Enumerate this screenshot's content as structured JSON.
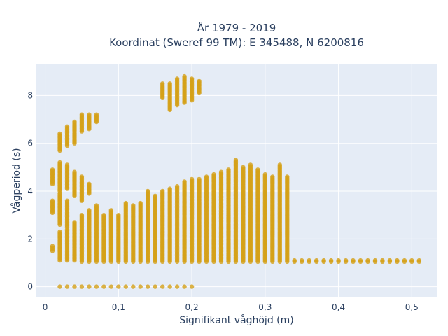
{
  "chart_data": {
    "type": "scatter",
    "title_lines": [
      "År 1979 - 2019",
      "Koordinat (Sweref 99 TM): E 345488, N 6200816"
    ],
    "xlabel": "Signifikant våghöjd (m)",
    "ylabel": "Vågperiod (s)",
    "xlim": [
      -0.012,
      0.535
    ],
    "ylim": [
      -0.45,
      9.3
    ],
    "x_ticks": [
      0,
      0.1,
      0.2,
      0.3,
      0.4,
      0.5
    ],
    "x_tick_labels": [
      "0",
      "0,1",
      "0,2",
      "0,3",
      "0,4",
      "0,5"
    ],
    "y_ticks": [
      0,
      2,
      4,
      6,
      8
    ],
    "y_tick_labels": [
      "0",
      "2",
      "4",
      "6",
      "8"
    ],
    "grid": true,
    "legend": "none",
    "colors": {
      "point": "#d4a017",
      "plot_background": "#e5ecf6",
      "grid": "#ffffff",
      "text": "#2a3f5f"
    },
    "columns": [
      {
        "x": 0.01,
        "ranges": [
          [
            1.5,
            1.7
          ],
          [
            3.1,
            3.6
          ],
          [
            4.3,
            4.9
          ]
        ]
      },
      {
        "x": 0.02,
        "ranges": [
          [
            0,
            0
          ],
          [
            1.1,
            2.3
          ],
          [
            2.6,
            3.9
          ],
          [
            4.0,
            5.2
          ],
          [
            5.7,
            6.4
          ]
        ]
      },
      {
        "x": 0.03,
        "ranges": [
          [
            0,
            0
          ],
          [
            1.1,
            2.4
          ],
          [
            2.5,
            3.6
          ],
          [
            4.1,
            5.1
          ],
          [
            5.9,
            6.7
          ]
        ]
      },
      {
        "x": 0.04,
        "ranges": [
          [
            0,
            0
          ],
          [
            1.1,
            2.7
          ],
          [
            3.8,
            4.8
          ],
          [
            6.0,
            6.9
          ]
        ]
      },
      {
        "x": 0.05,
        "ranges": [
          [
            0,
            0
          ],
          [
            1.05,
            3.0
          ],
          [
            3.6,
            4.6
          ],
          [
            6.5,
            7.2
          ]
        ]
      },
      {
        "x": 0.06,
        "ranges": [
          [
            0,
            0
          ],
          [
            1.05,
            3.2
          ],
          [
            3.9,
            4.3
          ],
          [
            6.6,
            7.2
          ]
        ]
      },
      {
        "x": 0.07,
        "ranges": [
          [
            0,
            0
          ],
          [
            1.05,
            3.4
          ],
          [
            6.9,
            7.2
          ]
        ]
      },
      {
        "x": 0.08,
        "ranges": [
          [
            0,
            0
          ],
          [
            1.05,
            3.0
          ]
        ]
      },
      {
        "x": 0.09,
        "ranges": [
          [
            0,
            0
          ],
          [
            1.05,
            3.2
          ]
        ]
      },
      {
        "x": 0.1,
        "ranges": [
          [
            0,
            0
          ],
          [
            1.05,
            3.0
          ]
        ]
      },
      {
        "x": 0.11,
        "ranges": [
          [
            0,
            0
          ],
          [
            1.05,
            3.5
          ]
        ]
      },
      {
        "x": 0.12,
        "ranges": [
          [
            0,
            0
          ],
          [
            1.05,
            3.4
          ]
        ]
      },
      {
        "x": 0.13,
        "ranges": [
          [
            0,
            0
          ],
          [
            1.05,
            3.5
          ]
        ]
      },
      {
        "x": 0.14,
        "ranges": [
          [
            0,
            0
          ],
          [
            1.05,
            4.0
          ]
        ]
      },
      {
        "x": 0.15,
        "ranges": [
          [
            0,
            0
          ],
          [
            1.05,
            3.8
          ]
        ]
      },
      {
        "x": 0.16,
        "ranges": [
          [
            0,
            0
          ],
          [
            1.05,
            4.0
          ],
          [
            7.9,
            8.5
          ]
        ]
      },
      {
        "x": 0.17,
        "ranges": [
          [
            0,
            0
          ],
          [
            1.05,
            4.1
          ],
          [
            7.4,
            8.5
          ]
        ]
      },
      {
        "x": 0.18,
        "ranges": [
          [
            0,
            0
          ],
          [
            1.05,
            4.2
          ],
          [
            7.6,
            8.7
          ]
        ]
      },
      {
        "x": 0.19,
        "ranges": [
          [
            0,
            0
          ],
          [
            1.05,
            4.4
          ],
          [
            7.7,
            8.8
          ]
        ]
      },
      {
        "x": 0.2,
        "ranges": [
          [
            0,
            0
          ],
          [
            1.05,
            4.5
          ],
          [
            7.8,
            8.7
          ]
        ]
      },
      {
        "x": 0.21,
        "ranges": [
          [
            1.05,
            4.5
          ],
          [
            8.1,
            8.6
          ]
        ]
      },
      {
        "x": 0.22,
        "ranges": [
          [
            1.05,
            4.6
          ]
        ]
      },
      {
        "x": 0.23,
        "ranges": [
          [
            1.05,
            4.7
          ]
        ]
      },
      {
        "x": 0.24,
        "ranges": [
          [
            1.05,
            4.8
          ]
        ]
      },
      {
        "x": 0.25,
        "ranges": [
          [
            1.05,
            4.9
          ]
        ]
      },
      {
        "x": 0.26,
        "ranges": [
          [
            1.05,
            5.3
          ]
        ]
      },
      {
        "x": 0.27,
        "ranges": [
          [
            1.05,
            5.0
          ]
        ]
      },
      {
        "x": 0.28,
        "ranges": [
          [
            1.05,
            5.1
          ]
        ]
      },
      {
        "x": 0.29,
        "ranges": [
          [
            1.05,
            4.9
          ]
        ]
      },
      {
        "x": 0.3,
        "ranges": [
          [
            1.05,
            4.7
          ]
        ]
      },
      {
        "x": 0.31,
        "ranges": [
          [
            1.05,
            4.6
          ]
        ]
      },
      {
        "x": 0.32,
        "ranges": [
          [
            1.05,
            5.1
          ]
        ]
      },
      {
        "x": 0.33,
        "ranges": [
          [
            1.05,
            4.6
          ]
        ]
      },
      {
        "x": 0.34,
        "ranges": [
          [
            1.05,
            1.1
          ]
        ]
      },
      {
        "x": 0.35,
        "ranges": [
          [
            1.05,
            1.1
          ]
        ]
      },
      {
        "x": 0.36,
        "ranges": [
          [
            1.05,
            1.1
          ]
        ]
      },
      {
        "x": 0.37,
        "ranges": [
          [
            1.05,
            1.1
          ]
        ]
      },
      {
        "x": 0.38,
        "ranges": [
          [
            1.05,
            1.1
          ]
        ]
      },
      {
        "x": 0.39,
        "ranges": [
          [
            1.05,
            1.1
          ]
        ]
      },
      {
        "x": 0.4,
        "ranges": [
          [
            1.05,
            1.1
          ]
        ]
      },
      {
        "x": 0.41,
        "ranges": [
          [
            1.05,
            1.1
          ]
        ]
      },
      {
        "x": 0.42,
        "ranges": [
          [
            1.05,
            1.1
          ]
        ]
      },
      {
        "x": 0.43,
        "ranges": [
          [
            1.05,
            1.1
          ]
        ]
      },
      {
        "x": 0.44,
        "ranges": [
          [
            1.05,
            1.1
          ]
        ]
      },
      {
        "x": 0.45,
        "ranges": [
          [
            1.05,
            1.1
          ]
        ]
      },
      {
        "x": 0.46,
        "ranges": [
          [
            1.05,
            1.1
          ]
        ]
      },
      {
        "x": 0.47,
        "ranges": [
          [
            1.05,
            1.1
          ]
        ]
      },
      {
        "x": 0.48,
        "ranges": [
          [
            1.05,
            1.1
          ]
        ]
      },
      {
        "x": 0.49,
        "ranges": [
          [
            1.05,
            1.1
          ]
        ]
      },
      {
        "x": 0.5,
        "ranges": [
          [
            1.05,
            1.1
          ]
        ]
      },
      {
        "x": 0.51,
        "ranges": [
          [
            1.05,
            1.1
          ]
        ]
      }
    ]
  }
}
